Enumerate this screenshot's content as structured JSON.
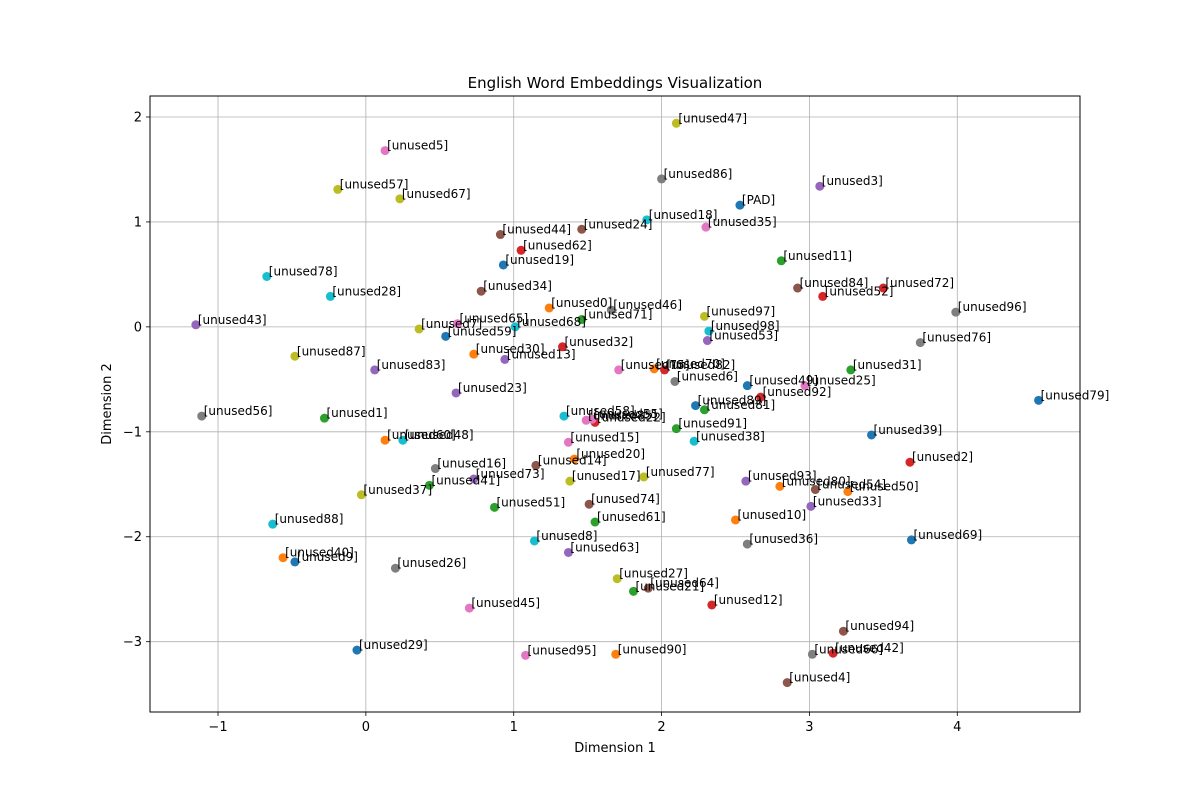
{
  "chart_data": {
    "type": "scatter",
    "title": "English Word Embeddings Visualization",
    "xlabel": "Dimension 1",
    "ylabel": "Dimension 2",
    "xlim": [
      -1.46,
      4.83
    ],
    "ylim": [
      -3.67,
      2.2
    ],
    "xticks": [
      -1,
      0,
      1,
      2,
      3,
      4
    ],
    "yticks": [
      -3,
      -2,
      -1,
      0,
      1,
      2
    ],
    "grid": true,
    "colors": [
      "#1f77b4",
      "#ff7f0e",
      "#2ca02c",
      "#d62728",
      "#9467bd",
      "#8c564b",
      "#e377c2",
      "#7f7f7f",
      "#bcbd22",
      "#17becf"
    ],
    "points": [
      {
        "label": "[PAD]",
        "x": 2.53,
        "y": 1.16
      },
      {
        "label": "[unused0]",
        "x": 1.24,
        "y": 0.18
      },
      {
        "label": "[unused1]",
        "x": -0.28,
        "y": -0.87
      },
      {
        "label": "[unused2]",
        "x": 3.68,
        "y": -1.29
      },
      {
        "label": "[unused3]",
        "x": 3.07,
        "y": 1.34
      },
      {
        "label": "[unused4]",
        "x": 2.85,
        "y": -3.39
      },
      {
        "label": "[unused5]",
        "x": 0.13,
        "y": 1.68
      },
      {
        "label": "[unused6]",
        "x": 2.09,
        "y": -0.52
      },
      {
        "label": "[unused7]",
        "x": 0.36,
        "y": -0.02
      },
      {
        "label": "[unused8]",
        "x": 1.14,
        "y": -2.04
      },
      {
        "label": "[unused9]",
        "x": -0.48,
        "y": -2.24
      },
      {
        "label": "[unused10]",
        "x": 2.5,
        "y": -1.84
      },
      {
        "label": "[unused11]",
        "x": 2.81,
        "y": 0.63
      },
      {
        "label": "[unused12]",
        "x": 2.34,
        "y": -2.65
      },
      {
        "label": "[unused13]",
        "x": 0.94,
        "y": -0.31
      },
      {
        "label": "[unused14]",
        "x": 1.15,
        "y": -1.32
      },
      {
        "label": "[unused15]",
        "x": 1.37,
        "y": -1.1
      },
      {
        "label": "[unused16]",
        "x": 0.47,
        "y": -1.35
      },
      {
        "label": "[unused17]",
        "x": 1.38,
        "y": -1.47
      },
      {
        "label": "[unused18]",
        "x": 1.9,
        "y": 1.02
      },
      {
        "label": "[unused19]",
        "x": 0.93,
        "y": 0.59
      },
      {
        "label": "[unused20]",
        "x": 1.41,
        "y": -1.26
      },
      {
        "label": "[unused21]",
        "x": 1.81,
        "y": -2.52
      },
      {
        "label": "[unused22]",
        "x": 1.55,
        "y": -0.91
      },
      {
        "label": "[unused23]",
        "x": 0.61,
        "y": -0.63
      },
      {
        "label": "[unused24]",
        "x": 1.46,
        "y": 0.93
      },
      {
        "label": "[unused25]",
        "x": 2.97,
        "y": -0.56
      },
      {
        "label": "[unused26]",
        "x": 0.2,
        "y": -2.3
      },
      {
        "label": "[unused27]",
        "x": 1.7,
        "y": -2.4
      },
      {
        "label": "[unused28]",
        "x": -0.24,
        "y": 0.29
      },
      {
        "label": "[unused29]",
        "x": -0.06,
        "y": -3.08
      },
      {
        "label": "[unused30]",
        "x": 0.73,
        "y": -0.26
      },
      {
        "label": "[unused31]",
        "x": 3.28,
        "y": -0.41
      },
      {
        "label": "[unused32]",
        "x": 1.33,
        "y": -0.19
      },
      {
        "label": "[unused33]",
        "x": 3.01,
        "y": -1.71
      },
      {
        "label": "[unused34]",
        "x": 0.78,
        "y": 0.34
      },
      {
        "label": "[unused35]",
        "x": 2.3,
        "y": 0.95
      },
      {
        "label": "[unused36]",
        "x": 2.58,
        "y": -2.07
      },
      {
        "label": "[unused37]",
        "x": -0.03,
        "y": -1.6
      },
      {
        "label": "[unused38]",
        "x": 2.22,
        "y": -1.09
      },
      {
        "label": "[unused39]",
        "x": 3.42,
        "y": -1.03
      },
      {
        "label": "[unused40]",
        "x": -0.56,
        "y": -2.2
      },
      {
        "label": "[unused41]",
        "x": 0.43,
        "y": -1.51
      },
      {
        "label": "[unused42]",
        "x": 3.16,
        "y": -3.11
      },
      {
        "label": "[unused43]",
        "x": -1.15,
        "y": 0.02
      },
      {
        "label": "[unused44]",
        "x": 0.91,
        "y": 0.88
      },
      {
        "label": "[unused45]",
        "x": 0.7,
        "y": -2.68
      },
      {
        "label": "[unused46]",
        "x": 1.66,
        "y": 0.16
      },
      {
        "label": "[unused47]",
        "x": 2.1,
        "y": 1.94
      },
      {
        "label": "[unused48]",
        "x": 0.25,
        "y": -1.08
      },
      {
        "label": "[unused49]",
        "x": 2.58,
        "y": -0.56
      },
      {
        "label": "[unused50]",
        "x": 3.26,
        "y": -1.57
      },
      {
        "label": "[unused51]",
        "x": 0.87,
        "y": -1.72
      },
      {
        "label": "[unused52]",
        "x": 3.09,
        "y": 0.29
      },
      {
        "label": "[unused53]",
        "x": 2.31,
        "y": -0.13
      },
      {
        "label": "[unused54]",
        "x": 3.04,
        "y": -1.55
      },
      {
        "label": "[unused55]",
        "x": 1.53,
        "y": -0.88
      },
      {
        "label": "[unused56]",
        "x": -1.11,
        "y": -0.85
      },
      {
        "label": "[unused57]",
        "x": -0.19,
        "y": 1.31
      },
      {
        "label": "[unused58]",
        "x": 1.34,
        "y": -0.85
      },
      {
        "label": "[unused59]",
        "x": 0.54,
        "y": -0.09
      },
      {
        "label": "[unused60]",
        "x": 0.13,
        "y": -1.08
      },
      {
        "label": "[unused61]",
        "x": 1.55,
        "y": -1.86
      },
      {
        "label": "[unused62]",
        "x": 1.05,
        "y": 0.73
      },
      {
        "label": "[unused63]",
        "x": 1.37,
        "y": -2.15
      },
      {
        "label": "[unused64]",
        "x": 1.91,
        "y": -2.49
      },
      {
        "label": "[unused65]",
        "x": 0.62,
        "y": 0.03
      },
      {
        "label": "[unused66]",
        "x": 3.02,
        "y": -3.12
      },
      {
        "label": "[unused67]",
        "x": 0.23,
        "y": 1.22
      },
      {
        "label": "[unused68]",
        "x": 1.01,
        "y": 0.0
      },
      {
        "label": "[unused69]",
        "x": 3.69,
        "y": -2.03
      },
      {
        "label": "[unused70]",
        "x": 1.95,
        "y": -0.4
      },
      {
        "label": "[unused71]",
        "x": 1.46,
        "y": 0.07
      },
      {
        "label": "[unused72]",
        "x": 3.5,
        "y": 0.37
      },
      {
        "label": "[unused73]",
        "x": 0.73,
        "y": -1.45
      },
      {
        "label": "[unused74]",
        "x": 1.51,
        "y": -1.69
      },
      {
        "label": "[unused75]",
        "x": 1.71,
        "y": -0.41
      },
      {
        "label": "[unused76]",
        "x": 3.75,
        "y": -0.15
      },
      {
        "label": "[unused77]",
        "x": 1.88,
        "y": -1.43
      },
      {
        "label": "[unused78]",
        "x": -0.67,
        "y": 0.48
      },
      {
        "label": "[unused79]",
        "x": 4.55,
        "y": -0.7
      },
      {
        "label": "[unused80]",
        "x": 2.8,
        "y": -1.52
      },
      {
        "label": "[unused81]",
        "x": 2.29,
        "y": -0.79
      },
      {
        "label": "[unused82]",
        "x": 2.02,
        "y": -0.41
      },
      {
        "label": "[unused83]",
        "x": 0.06,
        "y": -0.41
      },
      {
        "label": "[unused84]",
        "x": 2.92,
        "y": 0.37
      },
      {
        "label": "[unused85]",
        "x": 1.49,
        "y": -0.89
      },
      {
        "label": "[unused86]",
        "x": 2.0,
        "y": 1.41
      },
      {
        "label": "[unused87]",
        "x": -0.48,
        "y": -0.28
      },
      {
        "label": "[unused88]",
        "x": -0.63,
        "y": -1.88
      },
      {
        "label": "[unused89]",
        "x": 2.23,
        "y": -0.75
      },
      {
        "label": "[unused90]",
        "x": 1.69,
        "y": -3.12
      },
      {
        "label": "[unused91]",
        "x": 2.1,
        "y": -0.97
      },
      {
        "label": "[unused92]",
        "x": 2.67,
        "y": -0.67
      },
      {
        "label": "[unused93]",
        "x": 2.57,
        "y": -1.47
      },
      {
        "label": "[unused94]",
        "x": 3.23,
        "y": -2.9
      },
      {
        "label": "[unused95]",
        "x": 1.08,
        "y": -3.13
      },
      {
        "label": "[unused96]",
        "x": 3.99,
        "y": 0.14
      },
      {
        "label": "[unused97]",
        "x": 2.29,
        "y": 0.1
      },
      {
        "label": "[unused98]",
        "x": 2.32,
        "y": -0.04
      }
    ]
  }
}
